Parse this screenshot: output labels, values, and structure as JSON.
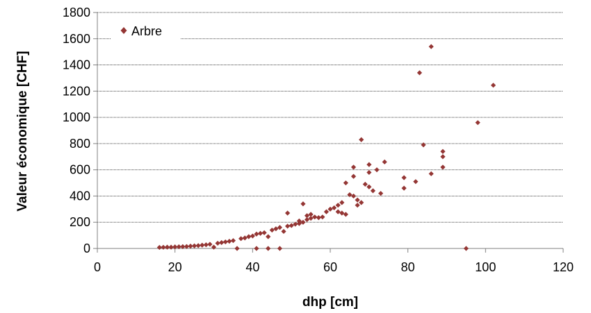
{
  "chart_data": {
    "type": "scatter",
    "title": "",
    "xlabel": "dhp [cm]",
    "ylabel": "Valeur économique [CHF]",
    "xlim": [
      0,
      120
    ],
    "ylim": [
      0,
      1800
    ],
    "x_ticks": [
      "0",
      "20",
      "40",
      "60",
      "80",
      "100",
      "120"
    ],
    "y_ticks": [
      "0",
      "200",
      "400",
      "600",
      "800",
      "1000",
      "1200",
      "1400",
      "1600",
      "1800"
    ],
    "grid": "horizontal-dotted",
    "legend": {
      "position": "top-left",
      "entries": [
        "Arbre"
      ]
    },
    "colors": {
      "marker": "#943634",
      "axis": "#808080",
      "grid": "#404040"
    },
    "series": [
      {
        "name": "Arbre",
        "marker": "diamond",
        "points": [
          [
            16,
            8
          ],
          [
            17,
            9
          ],
          [
            18,
            10
          ],
          [
            19,
            10
          ],
          [
            20,
            12
          ],
          [
            21,
            13
          ],
          [
            22,
            14
          ],
          [
            23,
            15
          ],
          [
            24,
            18
          ],
          [
            25,
            20
          ],
          [
            26,
            22
          ],
          [
            27,
            25
          ],
          [
            28,
            28
          ],
          [
            29,
            32
          ],
          [
            30,
            10
          ],
          [
            31,
            40
          ],
          [
            32,
            45
          ],
          [
            33,
            50
          ],
          [
            34,
            55
          ],
          [
            35,
            60
          ],
          [
            36,
            0
          ],
          [
            37,
            75
          ],
          [
            38,
            80
          ],
          [
            39,
            90
          ],
          [
            40,
            95
          ],
          [
            41,
            0
          ],
          [
            41,
            110
          ],
          [
            42,
            115
          ],
          [
            43,
            120
          ],
          [
            44,
            0
          ],
          [
            44,
            90
          ],
          [
            45,
            140
          ],
          [
            46,
            150
          ],
          [
            47,
            0
          ],
          [
            47,
            160
          ],
          [
            48,
            130
          ],
          [
            49,
            170
          ],
          [
            49,
            270
          ],
          [
            50,
            175
          ],
          [
            51,
            185
          ],
          [
            52,
            190
          ],
          [
            52,
            210
          ],
          [
            53,
            200
          ],
          [
            53,
            340
          ],
          [
            54,
            220
          ],
          [
            54,
            250
          ],
          [
            55,
            230
          ],
          [
            55,
            260
          ],
          [
            56,
            240
          ],
          [
            57,
            235
          ],
          [
            58,
            240
          ],
          [
            59,
            280
          ],
          [
            60,
            300
          ],
          [
            61,
            310
          ],
          [
            62,
            330
          ],
          [
            62,
            280
          ],
          [
            63,
            350
          ],
          [
            63,
            270
          ],
          [
            64,
            500
          ],
          [
            64,
            260
          ],
          [
            65,
            410
          ],
          [
            66,
            620
          ],
          [
            66,
            550
          ],
          [
            66,
            400
          ],
          [
            67,
            370
          ],
          [
            67,
            330
          ],
          [
            68,
            830
          ],
          [
            68,
            350
          ],
          [
            69,
            490
          ],
          [
            70,
            640
          ],
          [
            70,
            580
          ],
          [
            70,
            470
          ],
          [
            71,
            440
          ],
          [
            72,
            600
          ],
          [
            73,
            420
          ],
          [
            74,
            660
          ],
          [
            79,
            540
          ],
          [
            79,
            460
          ],
          [
            82,
            510
          ],
          [
            83,
            1340
          ],
          [
            84,
            790
          ],
          [
            86,
            1540
          ],
          [
            86,
            570
          ],
          [
            89,
            740
          ],
          [
            89,
            700
          ],
          [
            89,
            620
          ],
          [
            95,
            0
          ],
          [
            98,
            960
          ],
          [
            102,
            1245
          ]
        ]
      }
    ]
  }
}
